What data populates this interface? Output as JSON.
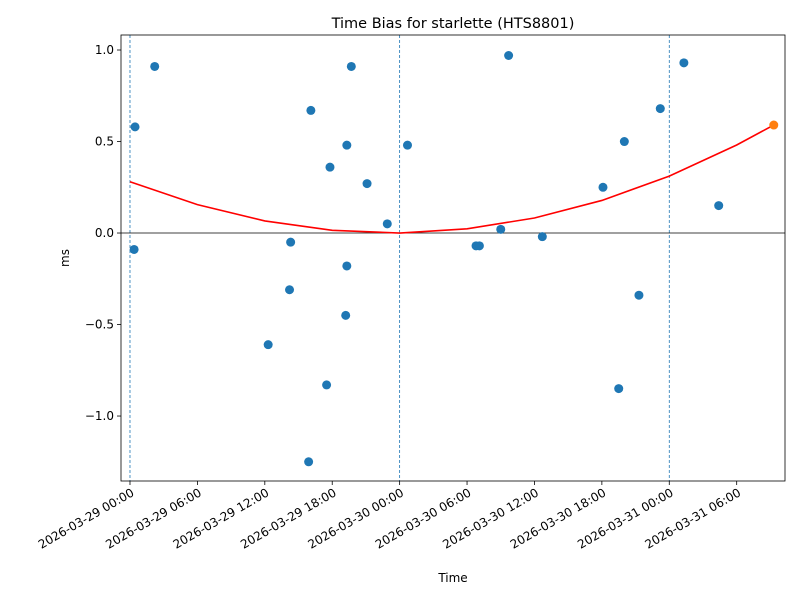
{
  "chart_data": {
    "type": "scatter",
    "title": "Time Bias for starlette (HTS8801)",
    "xlabel": "Time",
    "ylabel": "ms",
    "xlim": [
      "2026-03-28T23:12",
      "2026-03-31T10:18"
    ],
    "ylim": [
      -1.355,
      1.082
    ],
    "grid": false,
    "x_ticks": [
      "2026-03-29T00:00",
      "2026-03-29T06:00",
      "2026-03-29T12:00",
      "2026-03-29T18:00",
      "2026-03-30T00:00",
      "2026-03-30T06:00",
      "2026-03-30T12:00",
      "2026-03-30T18:00",
      "2026-03-31T00:00",
      "2026-03-31T06:00"
    ],
    "x_tick_labels": [
      "2026-03-29 00:00",
      "2026-03-29 06:00",
      "2026-03-29 12:00",
      "2026-03-29 18:00",
      "2026-03-30 00:00",
      "2026-03-30 06:00",
      "2026-03-30 12:00",
      "2026-03-30 18:00",
      "2026-03-31 00:00",
      "2026-03-31 06:00"
    ],
    "y_ticks": [
      -1.0,
      -0.5,
      0.0,
      0.5,
      1.0
    ],
    "y_tick_labels": [
      "−1.0",
      "−0.5",
      "0.0",
      "0.5",
      "1.0"
    ],
    "day_lines": [
      "2026-03-29T00:00",
      "2026-03-30T00:00",
      "2026-03-31T00:00"
    ],
    "zero_line": 0,
    "colors": {
      "points": "#1f77b4",
      "latest": "#ff7f0e",
      "fit": "#ff0000",
      "day_lines": "#1f77b4"
    },
    "points": [
      {
        "x": "2026-03-29T00:27",
        "y": 0.58
      },
      {
        "x": "2026-03-29T00:22",
        "y": -0.09
      },
      {
        "x": "2026-03-29T02:12",
        "y": 0.91
      },
      {
        "x": "2026-03-29T12:18",
        "y": -0.61
      },
      {
        "x": "2026-03-29T14:12",
        "y": -0.31
      },
      {
        "x": "2026-03-29T14:18",
        "y": -0.05
      },
      {
        "x": "2026-03-29T16:06",
        "y": 0.67
      },
      {
        "x": "2026-03-29T15:54",
        "y": -1.25
      },
      {
        "x": "2026-03-29T17:30",
        "y": -0.83
      },
      {
        "x": "2026-03-29T17:48",
        "y": 0.36
      },
      {
        "x": "2026-03-29T19:12",
        "y": -0.45
      },
      {
        "x": "2026-03-29T19:18",
        "y": -0.18
      },
      {
        "x": "2026-03-29T19:18",
        "y": 0.48
      },
      {
        "x": "2026-03-29T19:42",
        "y": 0.91
      },
      {
        "x": "2026-03-29T21:06",
        "y": 0.27
      },
      {
        "x": "2026-03-29T22:54",
        "y": 0.05
      },
      {
        "x": "2026-03-30T00:42",
        "y": 0.48
      },
      {
        "x": "2026-03-30T06:48",
        "y": -0.07
      },
      {
        "x": "2026-03-30T07:06",
        "y": -0.07
      },
      {
        "x": "2026-03-30T09:00",
        "y": 0.02
      },
      {
        "x": "2026-03-30T09:42",
        "y": 0.97
      },
      {
        "x": "2026-03-30T12:42",
        "y": -0.02
      },
      {
        "x": "2026-03-30T18:06",
        "y": 0.25
      },
      {
        "x": "2026-03-30T19:30",
        "y": -0.85
      },
      {
        "x": "2026-03-30T20:00",
        "y": 0.5
      },
      {
        "x": "2026-03-30T21:18",
        "y": -0.34
      },
      {
        "x": "2026-03-30T23:12",
        "y": 0.68
      },
      {
        "x": "2026-03-31T01:18",
        "y": 0.93
      },
      {
        "x": "2026-03-31T04:24",
        "y": 0.15
      }
    ],
    "latest_point": {
      "x": "2026-03-31T09:18",
      "y": 0.59
    },
    "fit_curve": [
      {
        "x": "2026-03-29T00:00",
        "y": 0.28
      },
      {
        "x": "2026-03-29T06:00",
        "y": 0.155
      },
      {
        "x": "2026-03-29T12:00",
        "y": 0.066
      },
      {
        "x": "2026-03-29T18:00",
        "y": 0.015
      },
      {
        "x": "2026-03-30T00:00",
        "y": 0.0
      },
      {
        "x": "2026-03-30T06:00",
        "y": 0.023
      },
      {
        "x": "2026-03-30T12:00",
        "y": 0.082
      },
      {
        "x": "2026-03-30T18:00",
        "y": 0.178
      },
      {
        "x": "2026-03-31T00:00",
        "y": 0.311
      },
      {
        "x": "2026-03-31T06:00",
        "y": 0.481
      },
      {
        "x": "2026-03-31T09:18",
        "y": 0.59
      }
    ]
  }
}
